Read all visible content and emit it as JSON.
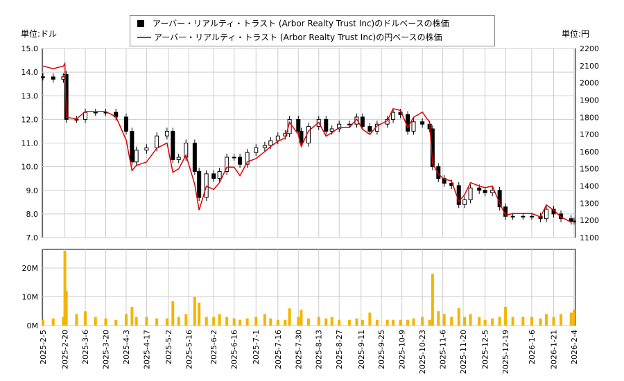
{
  "chart_data": {
    "type": "candlestick+line+bar",
    "unit_left": "単位:ドル",
    "unit_right": "単位:円",
    "legend": [
      {
        "label": "アーバー・リアルティ・トラスト (Arbor Realty Trust Inc)のドルベースの株価",
        "color": "#000000"
      },
      {
        "label": "アーバー・リアルティ・トラスト (Arbor Realty Trust Inc)の円ベースの株価",
        "color": "#e00000"
      }
    ],
    "y_left": {
      "range": [
        7.0,
        15.0
      ],
      "ticks": [
        "7.0",
        "8.0",
        "9.0",
        "10.0",
        "11.0",
        "12.0",
        "13.0",
        "14.0",
        "15.0"
      ]
    },
    "y_right": {
      "range": [
        1100,
        2200
      ],
      "ticks": [
        "1100",
        "1200",
        "1300",
        "1400",
        "1500",
        "1600",
        "1700",
        "1800",
        "1900",
        "2000",
        "2100",
        "2200"
      ]
    },
    "y_volume": {
      "range": [
        0,
        26.5
      ],
      "ticks": [
        "0M",
        "10M",
        "20M"
      ]
    },
    "x_ticks": [
      "2025-2-5",
      "2025-2-20",
      "2025-3-6",
      "2025-3-20",
      "2025-4-3",
      "2025-4-17",
      "2025-5-2",
      "2025-5-16",
      "2025-6-2",
      "2025-6-16",
      "2025-7-1",
      "2025-7-16",
      "2025-7-30",
      "2025-8-13",
      "2025-8-27",
      "2025-9-11",
      "2025-9-25",
      "2025-10-9",
      "2025-10-23",
      "2025-11-6",
      "2025-11-20",
      "2025-12-5",
      "2025-12-19",
      "2026-1-6",
      "2026-1-21",
      "2026-2-4"
    ],
    "grid": true,
    "dates": [
      "2025-02-05",
      "2025-02-12",
      "2025-02-19",
      "2025-02-20",
      "2025-02-21",
      "2025-02-28",
      "2025-03-06",
      "2025-03-13",
      "2025-03-20",
      "2025-03-27",
      "2025-04-03",
      "2025-04-07",
      "2025-04-10",
      "2025-04-17",
      "2025-04-24",
      "2025-05-01",
      "2025-05-05",
      "2025-05-09",
      "2025-05-14",
      "2025-05-20",
      "2025-05-23",
      "2025-05-28",
      "2025-06-02",
      "2025-06-06",
      "2025-06-11",
      "2025-06-16",
      "2025-06-20",
      "2025-06-25",
      "2025-07-01",
      "2025-07-07",
      "2025-07-11",
      "2025-07-16",
      "2025-07-21",
      "2025-07-24",
      "2025-07-30",
      "2025-08-01",
      "2025-08-06",
      "2025-08-13",
      "2025-08-18",
      "2025-08-22",
      "2025-08-27",
      "2025-09-03",
      "2025-09-08",
      "2025-09-12",
      "2025-09-17",
      "2025-09-22",
      "2025-09-29",
      "2025-10-03",
      "2025-10-08",
      "2025-10-13",
      "2025-10-17",
      "2025-10-23",
      "2025-10-28",
      "2025-10-30",
      "2025-11-03",
      "2025-11-07",
      "2025-11-12",
      "2025-11-17",
      "2025-11-21",
      "2025-11-25",
      "2025-12-01",
      "2025-12-05",
      "2025-12-10",
      "2025-12-15",
      "2025-12-19",
      "2025-12-24",
      "2025-12-31",
      "2026-01-06",
      "2026-01-12",
      "2026-01-16",
      "2026-01-21",
      "2026-01-26",
      "2026-02-02",
      "2026-02-04"
    ],
    "usd_close": [
      13.8,
      13.7,
      13.8,
      13.9,
      12.0,
      12.0,
      12.3,
      12.3,
      12.3,
      12.1,
      11.5,
      10.2,
      10.7,
      10.8,
      11.3,
      11.5,
      10.3,
      10.4,
      11.0,
      9.8,
      8.7,
      9.7,
      9.5,
      9.8,
      10.4,
      10.4,
      10.1,
      10.6,
      10.8,
      10.9,
      11.1,
      11.3,
      11.4,
      12.0,
      11.5,
      11.0,
      11.7,
      12.0,
      11.5,
      11.6,
      11.8,
      11.8,
      12.1,
      11.7,
      11.5,
      11.8,
      12.0,
      12.3,
      12.2,
      11.5,
      11.9,
      11.8,
      11.6,
      10.0,
      9.5,
      9.3,
      9.2,
      8.4,
      8.6,
      9.1,
      9.0,
      8.9,
      9.0,
      8.3,
      7.9,
      7.9,
      7.9,
      7.9,
      7.8,
      8.2,
      8.0,
      7.8,
      7.7,
      7.7
    ],
    "jpy_close": [
      2098,
      2082,
      2098,
      2113,
      1800,
      1790,
      1833,
      1833,
      1833,
      1803,
      1668,
      1490,
      1520,
      1540,
      1620,
      1650,
      1480,
      1500,
      1580,
      1410,
      1260,
      1400,
      1380,
      1420,
      1510,
      1510,
      1460,
      1540,
      1560,
      1600,
      1630,
      1660,
      1680,
      1770,
      1700,
      1630,
      1720,
      1770,
      1690,
      1710,
      1740,
      1740,
      1790,
      1730,
      1700,
      1750,
      1780,
      1850,
      1840,
      1740,
      1800,
      1830,
      1770,
      1530,
      1470,
      1440,
      1430,
      1310,
      1350,
      1420,
      1400,
      1390,
      1400,
      1300,
      1230,
      1240,
      1240,
      1240,
      1220,
      1290,
      1260,
      1220,
      1190,
      1195
    ],
    "volume_m": [
      2,
      2.5,
      3,
      26,
      12,
      4,
      5,
      3,
      2.5,
      2,
      4,
      6.5,
      3,
      3,
      2.5,
      2.5,
      8.5,
      3,
      4,
      10,
      8,
      3,
      3,
      4,
      3,
      2.5,
      2,
      2.5,
      3,
      4,
      2.5,
      2,
      2,
      6,
      3,
      5.5,
      2.5,
      3,
      2.5,
      3,
      2,
      2,
      2.5,
      2,
      4.5,
      2,
      2,
      2,
      2,
      2,
      2.5,
      3,
      2,
      18,
      5,
      4,
      3,
      6,
      3,
      4,
      3,
      2,
      2.5,
      3,
      6.5,
      3,
      3,
      3,
      2.5,
      4,
      3,
      4,
      4.5,
      5.5
    ]
  }
}
